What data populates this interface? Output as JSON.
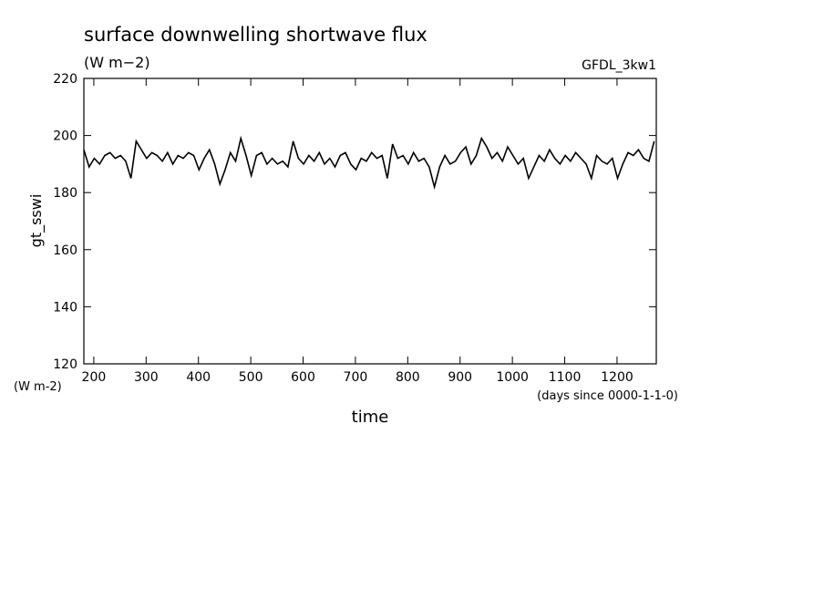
{
  "chart_data": {
    "type": "line",
    "title": "surface downwelling shortwave flux",
    "subtitle": "(W m−2)",
    "annotation": "GFDL_3kw1",
    "y_label": "gt_sswi",
    "y_units": "(W m-2)",
    "x_label": "time",
    "x_units": "(days since 0000-1-1-0)",
    "xlim": [
      181,
      1275
    ],
    "ylim": [
      120,
      220
    ],
    "xticks": [
      200,
      300,
      400,
      500,
      600,
      700,
      800,
      900,
      1000,
      1100,
      1200
    ],
    "yticks": [
      120,
      140,
      160,
      180,
      200,
      220
    ],
    "x": [
      181,
      191,
      201,
      211,
      221,
      231,
      241,
      251,
      261,
      271,
      281,
      291,
      301,
      311,
      321,
      331,
      341,
      351,
      361,
      371,
      381,
      391,
      401,
      411,
      421,
      431,
      441,
      451,
      461,
      471,
      481,
      491,
      501,
      511,
      521,
      531,
      541,
      551,
      561,
      571,
      581,
      591,
      601,
      611,
      621,
      631,
      641,
      651,
      661,
      671,
      681,
      691,
      701,
      711,
      721,
      731,
      741,
      751,
      761,
      771,
      781,
      791,
      801,
      811,
      821,
      831,
      841,
      851,
      861,
      871,
      881,
      891,
      901,
      911,
      921,
      931,
      941,
      951,
      961,
      971,
      981,
      991,
      1001,
      1011,
      1021,
      1031,
      1041,
      1051,
      1061,
      1071,
      1081,
      1091,
      1101,
      1111,
      1121,
      1131,
      1141,
      1151,
      1161,
      1171,
      1181,
      1191,
      1201,
      1211,
      1221,
      1231,
      1241,
      1251,
      1261,
      1271
    ],
    "series": [
      {
        "color": "#000000",
        "values": [
          195,
          189,
          192,
          190,
          193,
          194,
          192,
          193,
          191,
          185,
          198,
          195,
          192,
          194,
          193,
          191,
          194,
          190,
          193,
          192,
          194,
          193,
          188,
          192,
          195,
          190,
          183,
          188,
          194,
          191,
          199,
          193,
          186,
          193,
          194,
          190,
          192,
          190,
          191,
          189,
          198,
          192,
          190,
          193,
          191,
          194,
          190,
          192,
          189,
          193,
          194,
          190,
          188,
          192,
          191,
          194,
          192,
          193,
          185,
          197,
          192,
          193,
          190,
          194,
          191,
          192,
          189,
          182,
          189,
          193,
          190,
          191,
          194,
          196,
          190,
          193,
          199,
          196,
          192,
          194,
          191,
          196,
          193,
          190,
          192,
          185,
          189,
          193,
          191,
          195,
          192,
          190,
          193,
          191,
          194,
          192,
          190,
          185,
          193,
          191,
          190,
          192,
          185,
          190,
          194,
          193,
          195,
          192,
          191,
          198
        ]
      }
    ]
  }
}
